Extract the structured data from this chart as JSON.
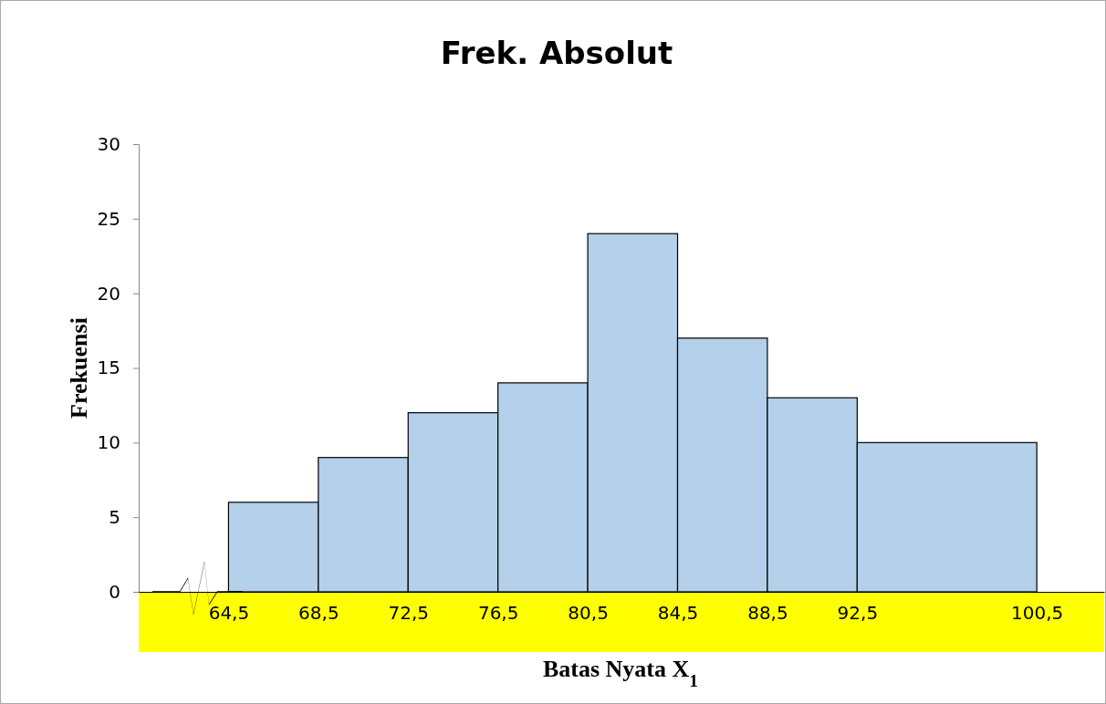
{
  "chart_data": {
    "type": "histogram",
    "title": "Frek. Absolut",
    "xlabel": "Batas Nyata X$_{1}$",
    "ylabel": "Frekuensi",
    "bins": [
      64.5,
      68.5,
      72.5,
      76.5,
      80.5,
      84.5,
      88.5,
      92.5,
      100.5
    ],
    "values": [
      6,
      9,
      12,
      14,
      24,
      17,
      13,
      10
    ],
    "color": "#b4d0ea",
    "xlim": [
      60.5,
      103.5
    ],
    "xticks": [
      {
        "value": 64.5,
        "label": "64,5"
      },
      {
        "value": 68.5,
        "label": "68,5"
      },
      {
        "value": 72.5,
        "label": "72,5"
      },
      {
        "value": 76.5,
        "label": "76,5"
      },
      {
        "value": 80.5,
        "label": "80,5"
      },
      {
        "value": 84.5,
        "label": "84,5"
      },
      {
        "value": 88.5,
        "label": "88,5"
      },
      {
        "value": 92.5,
        "label": "92,5"
      },
      {
        "value": 100.5,
        "label": "100,5"
      }
    ],
    "ylim": [
      0,
      30
    ],
    "yticks": [
      0,
      5,
      10,
      15,
      20,
      25,
      30
    ],
    "grid": false
  }
}
